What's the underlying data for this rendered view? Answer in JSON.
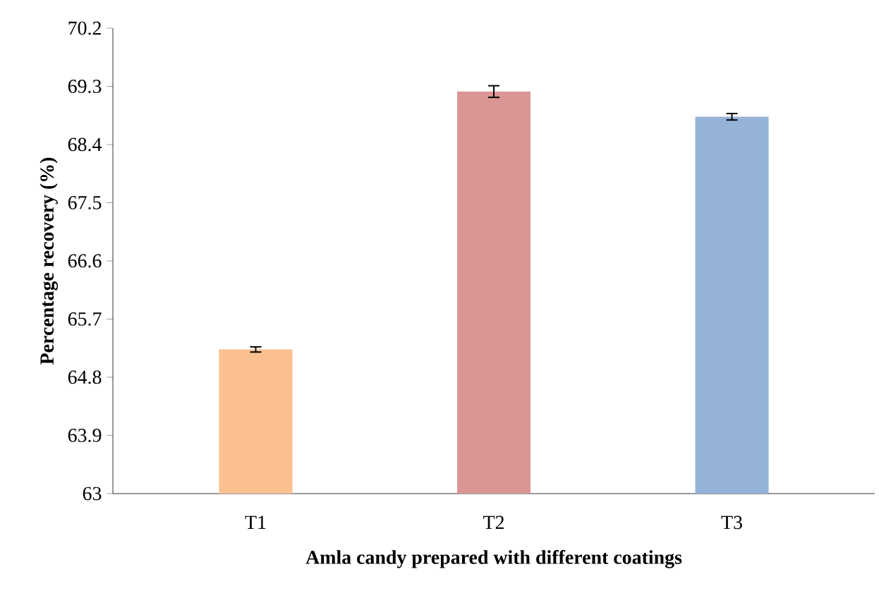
{
  "chart_data": {
    "type": "bar",
    "xlabel": "Amla candy prepared with different coatings",
    "ylabel": "Percentage recovery (%)",
    "categories": [
      "T1",
      "T2",
      "T3"
    ],
    "values": [
      65.23,
      69.22,
      68.83
    ],
    "errors": [
      0.04,
      0.09,
      0.05
    ],
    "colors": [
      "#fac090",
      "#d99694",
      "#95b3d7"
    ],
    "ylim": [
      63,
      70.2
    ],
    "yticks": [
      {
        "value": 63,
        "label": "63"
      },
      63.9,
      64.8,
      65.7,
      66.6,
      67.5,
      68.4,
      69.3,
      70.2
    ],
    "grid": false
  }
}
